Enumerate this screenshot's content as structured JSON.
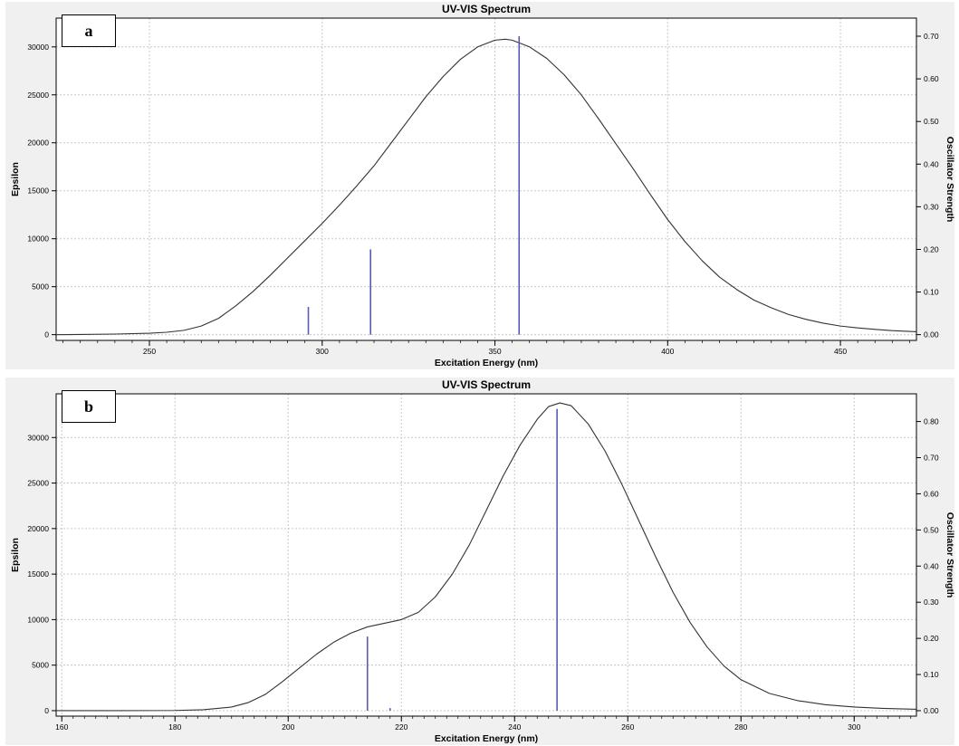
{
  "colors": {
    "curve": "#333333",
    "sticks": "#5a5ab4",
    "grid": "#c8c8c8",
    "plot_bg": "#ffffff",
    "panel_bg": "#f0f0f0"
  },
  "chart_data": [
    {
      "type": "line",
      "panel_tag": "a",
      "title": "UV-VIS Spectrum",
      "xlabel": "Excitation Energy (nm)",
      "ylabel": "Epsilon",
      "y2label": "Oscillator Strength",
      "xlim": [
        223,
        472
      ],
      "ylim": [
        -600,
        33000
      ],
      "y2lim": [
        -0.0135,
        0.7425
      ],
      "xticks": [
        250,
        300,
        350,
        400,
        450
      ],
      "yticks": [
        0,
        5000,
        10000,
        15000,
        20000,
        25000,
        30000
      ],
      "y2ticks": [
        "0.00",
        "0.10",
        "0.20",
        "0.30",
        "0.40",
        "0.50",
        "0.60",
        "0.70"
      ],
      "grid": true,
      "series": [
        {
          "kind": "curve",
          "x": [
            223,
            230,
            240,
            250,
            255,
            260,
            265,
            270,
            275,
            280,
            285,
            290,
            295,
            300,
            305,
            310,
            315,
            320,
            325,
            330,
            335,
            340,
            345,
            350,
            353,
            355,
            360,
            365,
            370,
            375,
            380,
            385,
            390,
            395,
            400,
            405,
            410,
            415,
            420,
            425,
            430,
            435,
            440,
            445,
            450,
            455,
            460,
            465,
            472
          ],
          "y": [
            0,
            20,
            60,
            150,
            250,
            450,
            900,
            1700,
            3000,
            4500,
            6200,
            8000,
            9800,
            11600,
            13500,
            15500,
            17600,
            20000,
            22400,
            24800,
            26900,
            28700,
            30000,
            30700,
            30800,
            30700,
            30000,
            28800,
            27100,
            25000,
            22500,
            19900,
            17300,
            14600,
            12000,
            9700,
            7700,
            6000,
            4700,
            3600,
            2800,
            2100,
            1600,
            1200,
            900,
            700,
            550,
            420,
            300
          ]
        },
        {
          "kind": "sticks",
          "x": [
            296,
            314,
            357
          ],
          "y": [
            0.065,
            0.2,
            0.7
          ]
        }
      ]
    },
    {
      "type": "line",
      "panel_tag": "b",
      "title": "UV-VIS Spectrum",
      "xlabel": "Excitation Energy (nm)",
      "ylabel": "Epsilon",
      "y2label": "Oscillator Strength",
      "xlim": [
        159,
        311
      ],
      "ylim": [
        -600,
        34800
      ],
      "y2lim": [
        -0.0151,
        0.8766
      ],
      "xticks": [
        160,
        180,
        200,
        220,
        240,
        260,
        280,
        300
      ],
      "yticks": [
        0,
        5000,
        10000,
        15000,
        20000,
        25000,
        30000
      ],
      "y2ticks": [
        "0.00",
        "0.10",
        "0.20",
        "0.30",
        "0.40",
        "0.50",
        "0.60",
        "0.70",
        "0.80"
      ],
      "grid": true,
      "series": [
        {
          "kind": "curve",
          "x": [
            159,
            170,
            180,
            185,
            190,
            193,
            196,
            199,
            202,
            205,
            208,
            211,
            214,
            217,
            220,
            223,
            226,
            229,
            232,
            235,
            238,
            241,
            244,
            246,
            248,
            250,
            253,
            256,
            259,
            262,
            265,
            268,
            271,
            274,
            277,
            280,
            285,
            290,
            295,
            300,
            305,
            311
          ],
          "y": [
            0,
            0,
            20,
            100,
            400,
            900,
            1800,
            3200,
            4700,
            6200,
            7500,
            8500,
            9200,
            9600,
            10000,
            10800,
            12500,
            15000,
            18200,
            22000,
            25800,
            29200,
            32000,
            33400,
            33800,
            33500,
            31500,
            28500,
            24800,
            20800,
            16800,
            13000,
            9700,
            7000,
            4900,
            3400,
            1900,
            1100,
            650,
            400,
            250,
            150
          ]
        },
        {
          "kind": "sticks",
          "x": [
            214,
            218,
            247.5
          ],
          "y": [
            0.205,
            0.007,
            0.835
          ]
        }
      ]
    }
  ]
}
